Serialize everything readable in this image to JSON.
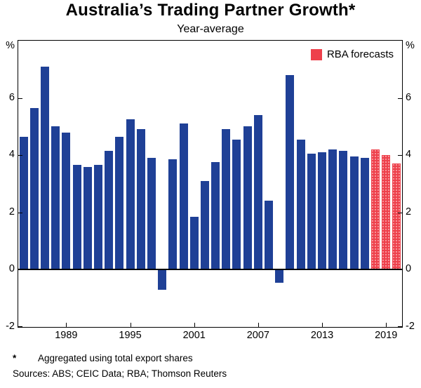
{
  "title": "Australia’s Trading Partner Growth*",
  "subtitle": "Year-average",
  "legend_label": "RBA forecasts",
  "footnote": {
    "marker": "*",
    "text": "Aggregated using total export shares"
  },
  "sources": "Sources: ABS; CEIC Data; RBA; Thomson Reuters",
  "colors": {
    "bar": "#1f4096",
    "forecast": "#ee404b",
    "axis": "#000000"
  },
  "chart_data": {
    "type": "bar",
    "title": "Australia’s Trading Partner Growth*",
    "subtitle": "Year-average",
    "y_unit": "%",
    "ylim": [
      -2,
      8
    ],
    "yticks": [
      -2,
      0,
      2,
      4,
      6
    ],
    "xticks": [
      1989,
      1995,
      2001,
      2007,
      2013,
      2019
    ],
    "grid": false,
    "legend": [
      {
        "label": "RBA forecasts",
        "color": "#ee404b"
      }
    ],
    "forecast_start_year": 2018,
    "years": [
      1985,
      1986,
      1987,
      1988,
      1989,
      1990,
      1991,
      1992,
      1993,
      1994,
      1995,
      1996,
      1997,
      1998,
      1999,
      2000,
      2001,
      2002,
      2003,
      2004,
      2005,
      2006,
      2007,
      2008,
      2009,
      2010,
      2011,
      2012,
      2013,
      2014,
      2015,
      2016,
      2017,
      2018,
      2019,
      2020
    ],
    "values": [
      4.65,
      5.65,
      7.1,
      5.0,
      4.8,
      3.65,
      3.6,
      3.65,
      4.15,
      4.65,
      5.25,
      4.9,
      3.9,
      -0.7,
      3.85,
      5.1,
      1.85,
      3.1,
      3.75,
      4.9,
      4.55,
      5.0,
      5.4,
      2.4,
      -0.45,
      6.8,
      4.55,
      4.05,
      4.1,
      4.2,
      4.15,
      3.95,
      3.9,
      4.2,
      4.0,
      3.7
    ]
  }
}
